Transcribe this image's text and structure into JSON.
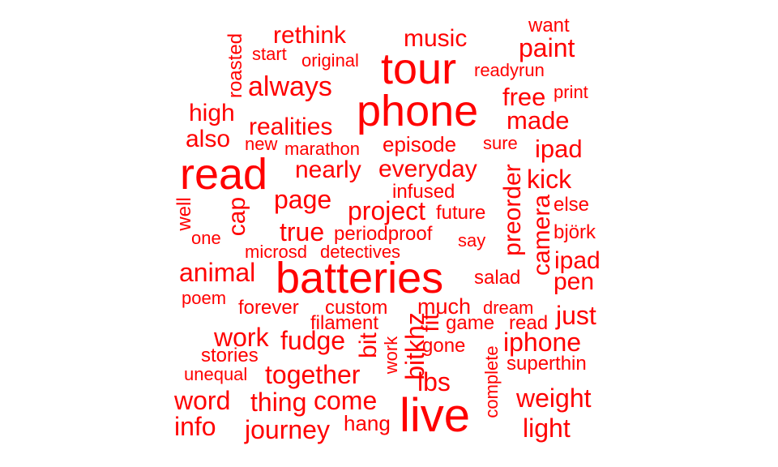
{
  "color": "#ff0000",
  "words": [
    {
      "text": "rethink"
    },
    {
      "text": "music"
    },
    {
      "text": "want"
    },
    {
      "text": "roasted"
    },
    {
      "text": "start"
    },
    {
      "text": "original"
    },
    {
      "text": "tour"
    },
    {
      "text": "paint"
    },
    {
      "text": "readyrun"
    },
    {
      "text": "always"
    },
    {
      "text": "phone"
    },
    {
      "text": "free"
    },
    {
      "text": "print"
    },
    {
      "text": "high"
    },
    {
      "text": "realities"
    },
    {
      "text": "made"
    },
    {
      "text": "also"
    },
    {
      "text": "new"
    },
    {
      "text": "marathon"
    },
    {
      "text": "episode"
    },
    {
      "text": "sure"
    },
    {
      "text": "ipad"
    },
    {
      "text": "read"
    },
    {
      "text": "nearly"
    },
    {
      "text": "everyday"
    },
    {
      "text": "preorder"
    },
    {
      "text": "kick"
    },
    {
      "text": "infused"
    },
    {
      "text": "well"
    },
    {
      "text": "cap"
    },
    {
      "text": "page"
    },
    {
      "text": "project"
    },
    {
      "text": "future"
    },
    {
      "text": "camera"
    },
    {
      "text": "else"
    },
    {
      "text": "one"
    },
    {
      "text": "true"
    },
    {
      "text": "periodproof"
    },
    {
      "text": "say"
    },
    {
      "text": "björk"
    },
    {
      "text": "microsd"
    },
    {
      "text": "detectives"
    },
    {
      "text": "ipad"
    },
    {
      "text": "animal"
    },
    {
      "text": "batteries"
    },
    {
      "text": "salad"
    },
    {
      "text": "pen"
    },
    {
      "text": "poem"
    },
    {
      "text": "forever"
    },
    {
      "text": "custom"
    },
    {
      "text": "much"
    },
    {
      "text": "dream"
    },
    {
      "text": "just"
    },
    {
      "text": "filament"
    },
    {
      "text": "fit"
    },
    {
      "text": "game"
    },
    {
      "text": "read"
    },
    {
      "text": "work"
    },
    {
      "text": "fudge"
    },
    {
      "text": "bit"
    },
    {
      "text": "bitkhz"
    },
    {
      "text": "iphone"
    },
    {
      "text": "gone"
    },
    {
      "text": "work"
    },
    {
      "text": "stories"
    },
    {
      "text": "complete"
    },
    {
      "text": "superthin"
    },
    {
      "text": "unequal"
    },
    {
      "text": "together"
    },
    {
      "text": "lbs"
    },
    {
      "text": "word"
    },
    {
      "text": "thing"
    },
    {
      "text": "come"
    },
    {
      "text": "weight"
    },
    {
      "text": "live"
    },
    {
      "text": "info"
    },
    {
      "text": "journey"
    },
    {
      "text": "hang"
    },
    {
      "text": "light"
    }
  ]
}
